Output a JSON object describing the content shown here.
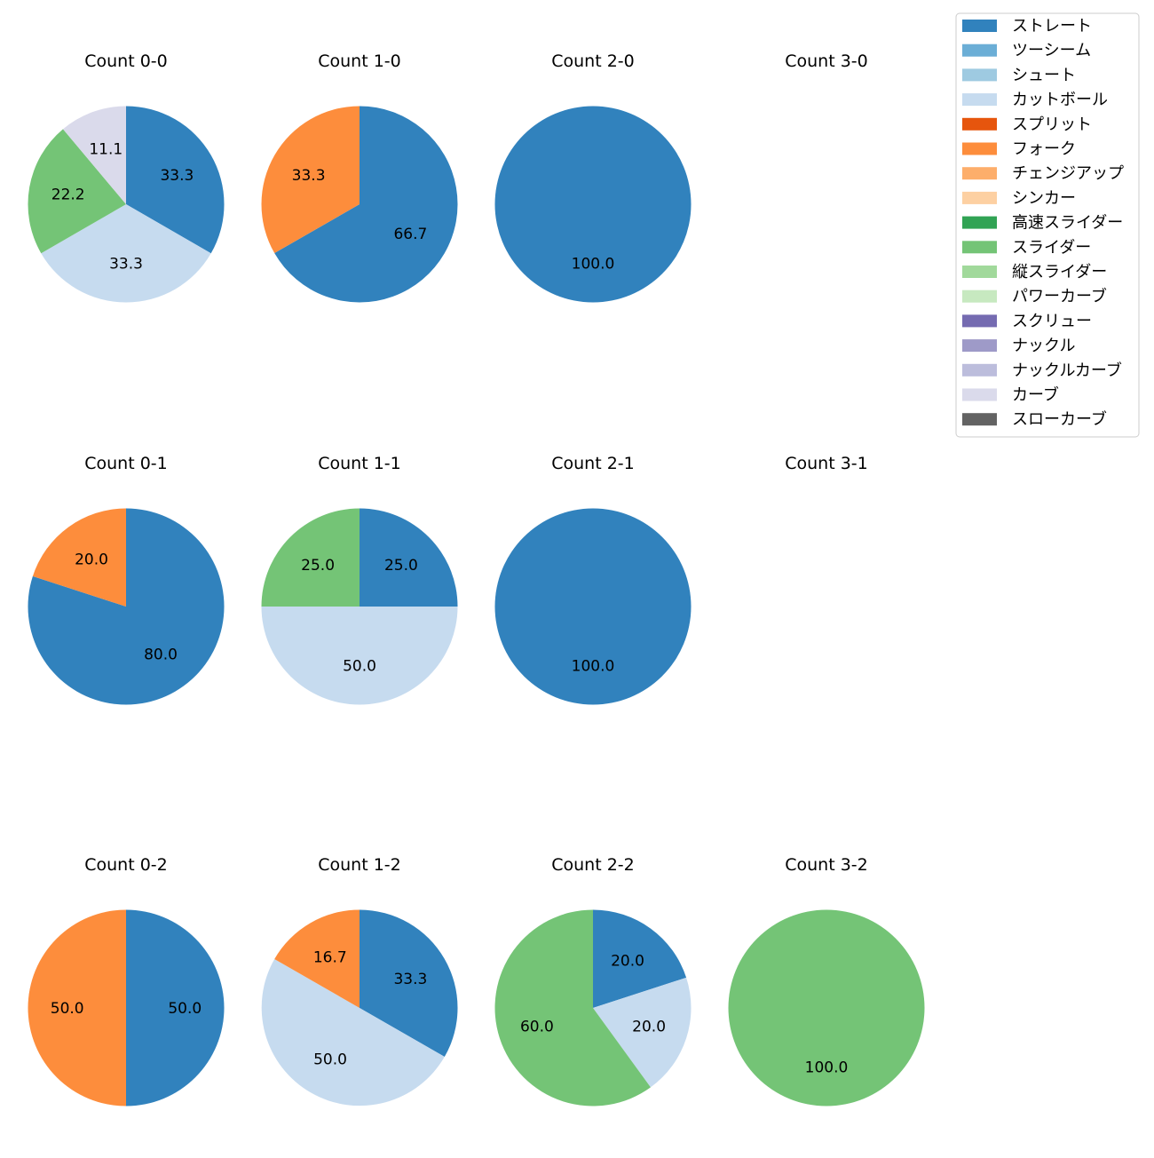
{
  "chart_data": {
    "type": "pie",
    "grid": "3x4 small multiples",
    "start_angle": "top, clockwise",
    "label_format": "percent, one decimal",
    "legend": {
      "placement": "top-right",
      "entries": [
        {
          "name": "ストレート",
          "color": "#3182bd"
        },
        {
          "name": "ツーシーム",
          "color": "#6baed6"
        },
        {
          "name": "シュート",
          "color": "#9ecae1"
        },
        {
          "name": "カットボール",
          "color": "#c6dbef"
        },
        {
          "name": "スプリット",
          "color": "#e6550d"
        },
        {
          "name": "フォーク",
          "color": "#fd8d3c"
        },
        {
          "name": "チェンジアップ",
          "color": "#fdae6b"
        },
        {
          "name": "シンカー",
          "color": "#fdd0a2"
        },
        {
          "name": "高速スライダー",
          "color": "#31a354"
        },
        {
          "name": "スライダー",
          "color": "#74c476"
        },
        {
          "name": "縦スライダー",
          "color": "#a1d99b"
        },
        {
          "name": "パワーカーブ",
          "color": "#c7e9c0"
        },
        {
          "name": "スクリュー",
          "color": "#756bb1"
        },
        {
          "name": "ナックル",
          "color": "#9e9ac8"
        },
        {
          "name": "ナックルカーブ",
          "color": "#bcbddc"
        },
        {
          "name": "カーブ",
          "color": "#dadaeb"
        },
        {
          "name": "スローカーブ",
          "color": "#636363"
        }
      ]
    },
    "panels": [
      {
        "title": "Count 0-0",
        "slices": [
          {
            "pitch": "ストレート",
            "value": 33.3
          },
          {
            "pitch": "カットボール",
            "value": 33.3
          },
          {
            "pitch": "スライダー",
            "value": 22.2
          },
          {
            "pitch": "カーブ",
            "value": 11.1
          }
        ]
      },
      {
        "title": "Count 1-0",
        "slices": [
          {
            "pitch": "ストレート",
            "value": 66.7
          },
          {
            "pitch": "フォーク",
            "value": 33.3
          }
        ]
      },
      {
        "title": "Count 2-0",
        "slices": [
          {
            "pitch": "ストレート",
            "value": 100.0
          }
        ]
      },
      {
        "title": "Count 3-0",
        "slices": []
      },
      {
        "title": "Count 0-1",
        "slices": [
          {
            "pitch": "ストレート",
            "value": 80.0
          },
          {
            "pitch": "フォーク",
            "value": 20.0
          }
        ]
      },
      {
        "title": "Count 1-1",
        "slices": [
          {
            "pitch": "ストレート",
            "value": 25.0
          },
          {
            "pitch": "カットボール",
            "value": 50.0
          },
          {
            "pitch": "スライダー",
            "value": 25.0
          }
        ]
      },
      {
        "title": "Count 2-1",
        "slices": [
          {
            "pitch": "ストレート",
            "value": 100.0
          }
        ]
      },
      {
        "title": "Count 3-1",
        "slices": []
      },
      {
        "title": "Count 0-2",
        "slices": [
          {
            "pitch": "ストレート",
            "value": 50.0
          },
          {
            "pitch": "フォーク",
            "value": 50.0
          }
        ]
      },
      {
        "title": "Count 1-2",
        "slices": [
          {
            "pitch": "ストレート",
            "value": 33.3
          },
          {
            "pitch": "カットボール",
            "value": 50.0
          },
          {
            "pitch": "フォーク",
            "value": 16.7
          }
        ]
      },
      {
        "title": "Count 2-2",
        "slices": [
          {
            "pitch": "ストレート",
            "value": 20.0
          },
          {
            "pitch": "カットボール",
            "value": 20.0
          },
          {
            "pitch": "スライダー",
            "value": 60.0
          }
        ]
      },
      {
        "title": "Count 3-2",
        "slices": [
          {
            "pitch": "スライダー",
            "value": 100.0
          }
        ]
      }
    ]
  }
}
